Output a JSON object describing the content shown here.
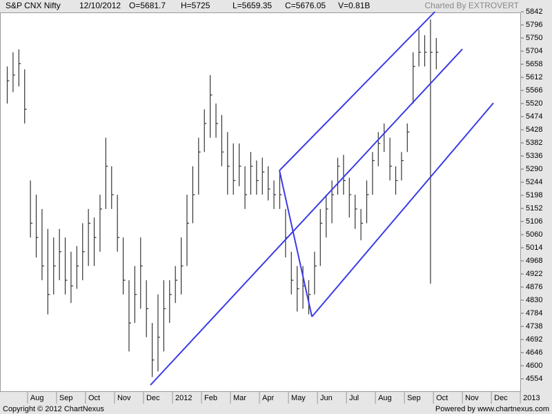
{
  "chart_data": {
    "type": "hlc",
    "header": [
      "S&P CNX Nifty",
      "12/10/2012",
      "O=5681.7",
      "H=5725",
      "L=5659.35",
      "C=5676.05",
      "V=0.81B"
    ],
    "credit": "Charted By EXTROVERT",
    "color": "#333333",
    "line_color": "#3a3ae8",
    "grid": false,
    "xlim": [
      0.05,
      18.02
    ],
    "xticks": [
      {
        "value": 1,
        "label": "Aug"
      },
      {
        "value": 2,
        "label": "Sep"
      },
      {
        "value": 3,
        "label": "Oct"
      },
      {
        "value": 4,
        "label": "Nov"
      },
      {
        "value": 5,
        "label": "Dec"
      },
      {
        "value": 6,
        "label": "2012"
      },
      {
        "value": 7,
        "label": "Feb"
      },
      {
        "value": 8,
        "label": "Mar"
      },
      {
        "value": 9,
        "label": "Apr"
      },
      {
        "value": 10,
        "label": "May"
      },
      {
        "value": 11,
        "label": "Jun"
      },
      {
        "value": 12,
        "label": "Jul"
      },
      {
        "value": 13,
        "label": "Aug"
      },
      {
        "value": 14,
        "label": "Sep"
      },
      {
        "value": 15,
        "label": "Oct"
      },
      {
        "value": 16,
        "label": "Nov"
      },
      {
        "value": 17,
        "label": "Dec"
      },
      {
        "value": 18,
        "label": "2013"
      }
    ],
    "ylim": [
      4508,
      5864
    ],
    "yticks": [
      4554,
      4600,
      4646,
      4692,
      4738,
      4784,
      4830,
      4876,
      4922,
      4968,
      5014,
      5060,
      5106,
      5152,
      5198,
      5244,
      5290,
      5336,
      5382,
      5428,
      5474,
      5520,
      5566,
      5612,
      5658,
      5704,
      5750,
      5796,
      5842
    ],
    "x": [
      0.3,
      0.5,
      0.7,
      0.9,
      1.1,
      1.3,
      1.5,
      1.7,
      1.9,
      2.1,
      2.3,
      2.5,
      2.7,
      2.9,
      3.1,
      3.3,
      3.5,
      3.7,
      3.9,
      4.1,
      4.3,
      4.5,
      4.7,
      4.9,
      5.1,
      5.3,
      5.5,
      5.7,
      5.9,
      6.1,
      6.3,
      6.5,
      6.7,
      6.9,
      7.1,
      7.3,
      7.5,
      7.7,
      7.9,
      8.1,
      8.3,
      8.5,
      8.7,
      8.9,
      9.1,
      9.3,
      9.5,
      9.7,
      9.9,
      10.1,
      10.3,
      10.5,
      10.7,
      10.9,
      11.1,
      11.3,
      11.5,
      11.7,
      11.9,
      12.1,
      12.3,
      12.5,
      12.7,
      12.9,
      13.1,
      13.3,
      13.5,
      13.7,
      13.9,
      14.1,
      14.3,
      14.5,
      14.7,
      14.9,
      15.1
    ],
    "high": [
      5650,
      5700,
      5710,
      5640,
      5250,
      5200,
      5150,
      5080,
      5050,
      5080,
      5050,
      5000,
      5020,
      5100,
      5150,
      5120,
      5200,
      5400,
      5300,
      5200,
      5050,
      4900,
      4950,
      5050,
      4900,
      4750,
      4850,
      4900,
      4900,
      4950,
      5050,
      5200,
      5300,
      5400,
      5500,
      5620,
      5520,
      5480,
      5420,
      5380,
      5380,
      5300,
      5350,
      5320,
      5330,
      5300,
      5250,
      5280,
      5150,
      5000,
      4950,
      4950,
      4900,
      5000,
      5150,
      5200,
      5250,
      5330,
      5340,
      5260,
      5200,
      5150,
      5250,
      5350,
      5420,
      5450,
      5400,
      5300,
      5350,
      5450,
      5700,
      5780,
      5760,
      5815,
      5750
    ],
    "low": [
      5520,
      5560,
      5580,
      5450,
      5050,
      4980,
      4900,
      4780,
      4850,
      4900,
      4850,
      4820,
      4870,
      4900,
      4950,
      4950,
      5000,
      5150,
      5150,
      5000,
      4850,
      4650,
      4750,
      4800,
      4700,
      4560,
      4580,
      4650,
      4750,
      4820,
      4850,
      4950,
      5100,
      5200,
      5350,
      5400,
      5400,
      5300,
      5200,
      5200,
      5230,
      5150,
      5200,
      5200,
      5200,
      5180,
      5150,
      5150,
      4980,
      4850,
      4790,
      4800,
      4780,
      4850,
      4950,
      5050,
      5100,
      5200,
      5200,
      5120,
      5080,
      5040,
      5100,
      5200,
      5300,
      5350,
      5250,
      5200,
      5250,
      5350,
      5520,
      5650,
      5650,
      4888,
      5640
    ],
    "close": [
      5600,
      5620,
      5660,
      5500,
      5100,
      5050,
      4950,
      4850,
      4950,
      5000,
      4900,
      4880,
      4950,
      5000,
      5100,
      5050,
      5150,
      5300,
      5200,
      5050,
      4900,
      4750,
      4850,
      4950,
      4800,
      4620,
      4700,
      4800,
      4850,
      4900,
      4950,
      5100,
      5200,
      5350,
      5450,
      5550,
      5450,
      5350,
      5300,
      5250,
      5300,
      5200,
      5300,
      5250,
      5280,
      5220,
      5200,
      5200,
      5050,
      4900,
      4870,
      4880,
      4850,
      4950,
      5100,
      5150,
      5200,
      5300,
      5250,
      5200,
      5150,
      5100,
      5200,
      5320,
      5380,
      5420,
      5300,
      5250,
      5320,
      5420,
      5650,
      5700,
      5700,
      5700,
      5700
    ],
    "trendlines": [
      {
        "x": [
          5.24,
          16.0
        ],
        "y": [
          4532,
          5711
        ]
      },
      {
        "x": [
          9.69,
          15.05
        ],
        "y": [
          5285,
          5842
        ]
      },
      {
        "x": [
          10.81,
          17.07
        ],
        "y": [
          4772,
          5522
        ]
      },
      {
        "x": [
          9.69,
          10.81
        ],
        "y": [
          5285,
          4772
        ]
      }
    ]
  },
  "footer": {
    "copyright": "Copyright © 2012 ChartNexus",
    "powered": "Powered by www.chartnexus.com"
  }
}
